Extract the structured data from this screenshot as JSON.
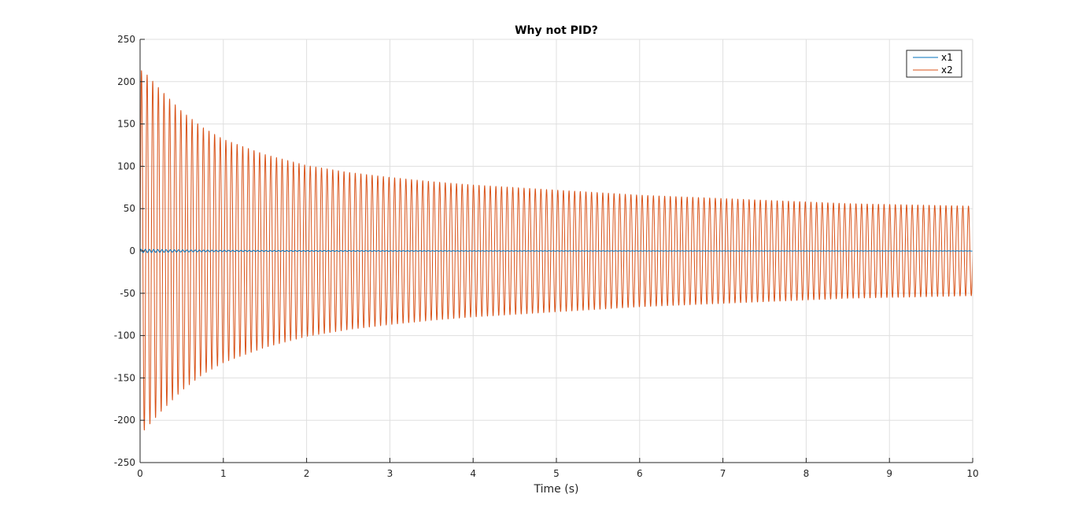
{
  "chart_data": {
    "type": "line",
    "title": "Why not PID?",
    "xlabel": "Time (s)",
    "ylabel": "",
    "xlim": [
      0,
      10
    ],
    "ylim": [
      -250,
      250
    ],
    "xticks": [
      0,
      1,
      2,
      3,
      4,
      5,
      6,
      7,
      8,
      9,
      10
    ],
    "xtick_labels": [
      "0",
      "1",
      "2",
      "3",
      "4",
      "5",
      "6",
      "7",
      "8",
      "9",
      "10"
    ],
    "yticks": [
      250,
      200,
      150,
      100,
      50,
      0,
      -50,
      -100,
      -150,
      -200,
      -250
    ],
    "ytick_labels": [
      "250",
      "200",
      "150",
      "100",
      "50",
      "0",
      "-50",
      "-100",
      "-150",
      "-200",
      "-250"
    ],
    "grid": true,
    "legend": {
      "position": "top-right",
      "entries": [
        "x1",
        "x2"
      ]
    },
    "series": [
      {
        "name": "x1",
        "color": "#0072BD",
        "oscillation_frequency_hz": 20,
        "envelope": {
          "t": [
            0,
            0.5,
            1,
            2,
            3,
            4,
            5,
            6,
            7,
            8,
            9,
            10
          ],
          "amplitude": [
            2,
            1.2,
            0.8,
            0.5,
            0.4,
            0.3,
            0.3,
            0.25,
            0.2,
            0.2,
            0.2,
            0.2
          ]
        }
      },
      {
        "name": "x2",
        "color": "#D95319",
        "oscillation_frequency_hz": 14.8,
        "envelope": {
          "t": [
            0,
            0.05,
            0.25,
            0.5,
            0.75,
            1,
            1.5,
            2,
            2.5,
            3,
            3.5,
            4,
            4.5,
            5,
            5.5,
            6,
            6.5,
            7,
            7.5,
            8,
            8.5,
            9,
            9.5,
            10
          ],
          "amplitude": [
            214,
            212,
            190,
            165,
            146,
            132,
            114,
            101,
            93,
            87,
            82,
            78,
            75,
            72,
            69,
            66,
            64,
            62,
            60,
            58,
            56,
            55,
            54,
            53
          ]
        }
      }
    ]
  }
}
